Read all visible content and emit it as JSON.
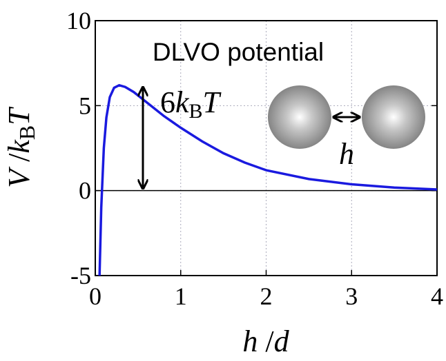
{
  "chart_data": {
    "type": "line",
    "title": "DLVO potential",
    "x_label": [
      "h",
      " /",
      "d"
    ],
    "y_label": [
      "V",
      " /",
      "k",
      "B",
      "T"
    ],
    "arrow_label": [
      "6",
      "k",
      "B",
      "T"
    ],
    "inset_label": "h",
    "x": [
      0.05,
      0.07,
      0.1,
      0.13,
      0.17,
      0.22,
      0.28,
      0.35,
      0.45,
      0.6,
      0.8,
      1.0,
      1.25,
      1.5,
      1.75,
      2.0,
      2.5,
      3.0,
      3.5,
      4.0
    ],
    "series": [
      {
        "name": "V",
        "color": "#1a1adf",
        "values": [
          -5,
          -1,
          2.5,
          4.3,
          5.5,
          6.05,
          6.2,
          6.1,
          5.8,
          5.2,
          4.4,
          3.7,
          2.9,
          2.2,
          1.65,
          1.2,
          0.68,
          0.37,
          0.18,
          0.07
        ]
      }
    ],
    "xlim": [
      0,
      4
    ],
    "xticks": [
      0,
      1,
      2,
      3,
      4
    ],
    "ylim": [
      -5,
      10
    ],
    "yticks": [
      -5,
      0,
      5,
      10
    ],
    "grid": true
  }
}
